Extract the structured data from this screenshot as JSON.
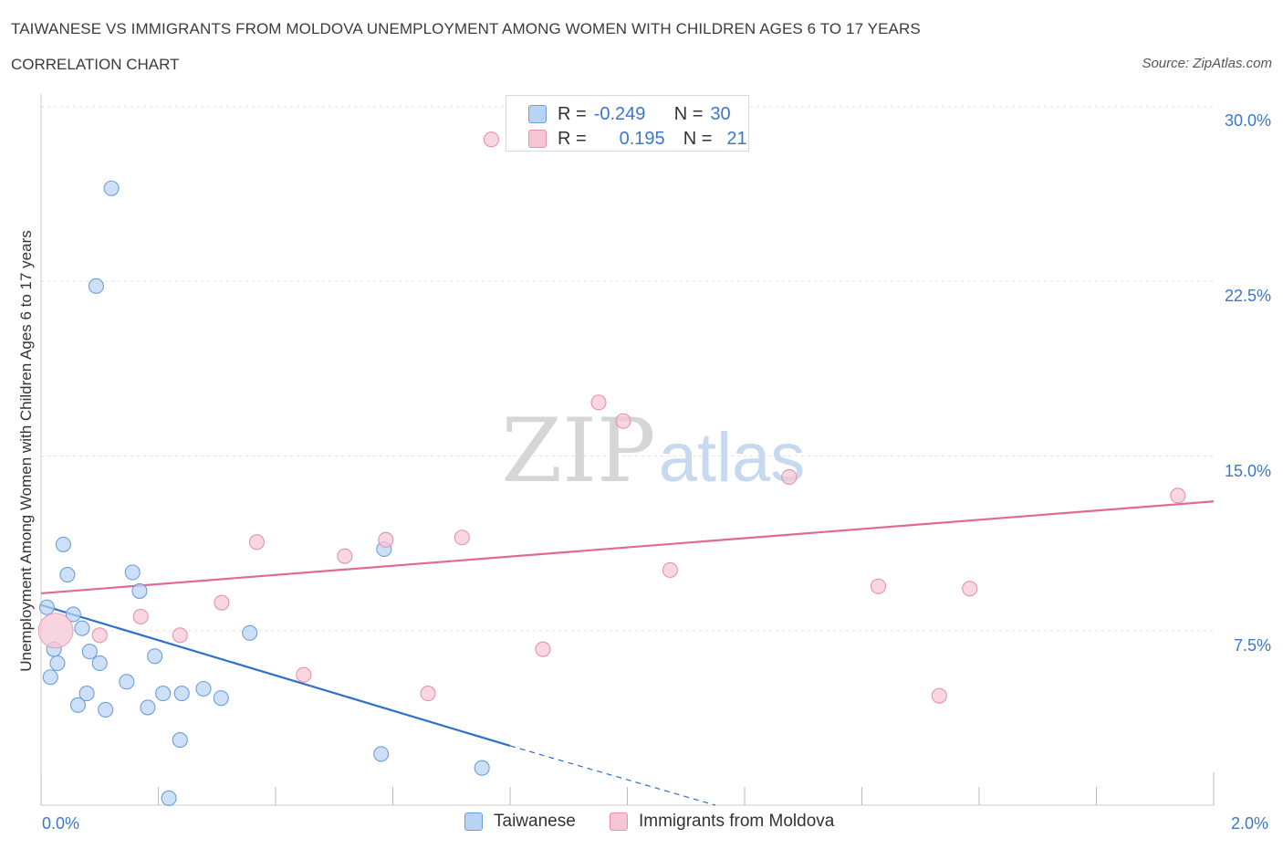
{
  "header": {
    "title": "TAIWANESE VS IMMIGRANTS FROM MOLDOVA UNEMPLOYMENT AMONG WOMEN WITH CHILDREN AGES 6 TO 17 YEARS",
    "subtitle": "CORRELATION CHART",
    "source": "Source: ZipAtlas.com"
  },
  "watermark": {
    "zip": "ZIP",
    "atlas": "atlas"
  },
  "stats_legend": {
    "r_label": "R =",
    "n_label": "N =",
    "rows": [
      {
        "r": "-0.249",
        "n": "30"
      },
      {
        "r": "0.195",
        "n": "21"
      }
    ]
  },
  "chart_data": {
    "type": "scatter",
    "title": "TAIWANESE VS IMMIGRANTS FROM MOLDOVA UNEMPLOYMENT AMONG WOMEN WITH CHILDREN AGES 6 TO 17 YEARS",
    "xlabel": "",
    "ylabel": "Unemployment Among Women with Children Ages 6 to 17 years",
    "xlim": [
      0,
      2.0
    ],
    "ylim": [
      0,
      30.0
    ],
    "x_tick_labels": [
      "0.0%",
      "2.0%"
    ],
    "y_tick_labels": [
      "7.5%",
      "15.0%",
      "22.5%",
      "30.0%"
    ],
    "y_ticks": [
      7.5,
      15.0,
      22.5,
      30.0
    ],
    "grid": true,
    "legend_position": "bottom",
    "series": [
      {
        "name": "Taiwanese",
        "color": "#6a9fdc",
        "fill": "#b8d3f5",
        "trend_color": "#2f6fce",
        "trend": {
          "x0": 0.0,
          "y0": 8.6,
          "x1": 0.8,
          "y1": 2.55,
          "dash_to_x": 1.15,
          "dash_to_y": 0.0
        },
        "points": [
          [
            0.01,
            8.5
          ],
          [
            0.016,
            5.5
          ],
          [
            0.022,
            6.7
          ],
          [
            0.028,
            6.1
          ],
          [
            0.038,
            11.2
          ],
          [
            0.045,
            9.9
          ],
          [
            0.055,
            8.2
          ],
          [
            0.063,
            4.3
          ],
          [
            0.07,
            7.6
          ],
          [
            0.078,
            4.8
          ],
          [
            0.083,
            6.6
          ],
          [
            0.1,
            6.1
          ],
          [
            0.11,
            4.1
          ],
          [
            0.12,
            26.5
          ],
          [
            0.094,
            22.3
          ],
          [
            0.146,
            5.3
          ],
          [
            0.156,
            10.0
          ],
          [
            0.168,
            9.2
          ],
          [
            0.182,
            4.2
          ],
          [
            0.194,
            6.4
          ],
          [
            0.208,
            4.8
          ],
          [
            0.218,
            0.3
          ],
          [
            0.237,
            2.8
          ],
          [
            0.24,
            4.8
          ],
          [
            0.277,
            5.0
          ],
          [
            0.307,
            4.6
          ],
          [
            0.356,
            7.4
          ],
          [
            0.585,
            11.0
          ],
          [
            0.58,
            2.2
          ],
          [
            0.752,
            1.6
          ]
        ]
      },
      {
        "name": "Immigrants from Moldova",
        "color": "#e891ac",
        "fill": "#f6c6d5",
        "trend_color": "#e06a92",
        "trend": {
          "x0": 0.0,
          "y0": 9.1,
          "x1": 2.0,
          "y1": 13.05
        },
        "points": [
          [
            0.025,
            7.5
          ],
          [
            0.1,
            7.3
          ],
          [
            0.17,
            8.1
          ],
          [
            0.237,
            7.3
          ],
          [
            0.308,
            8.7
          ],
          [
            0.368,
            11.3
          ],
          [
            0.448,
            5.6
          ],
          [
            0.518,
            10.7
          ],
          [
            0.588,
            11.4
          ],
          [
            0.66,
            4.8
          ],
          [
            0.718,
            11.5
          ],
          [
            0.768,
            28.6
          ],
          [
            0.856,
            6.7
          ],
          [
            0.951,
            17.3
          ],
          [
            0.993,
            16.5
          ],
          [
            1.073,
            10.1
          ],
          [
            1.276,
            14.1
          ],
          [
            1.428,
            9.4
          ],
          [
            1.532,
            4.7
          ],
          [
            1.584,
            9.3
          ],
          [
            1.939,
            13.3
          ]
        ]
      }
    ]
  }
}
